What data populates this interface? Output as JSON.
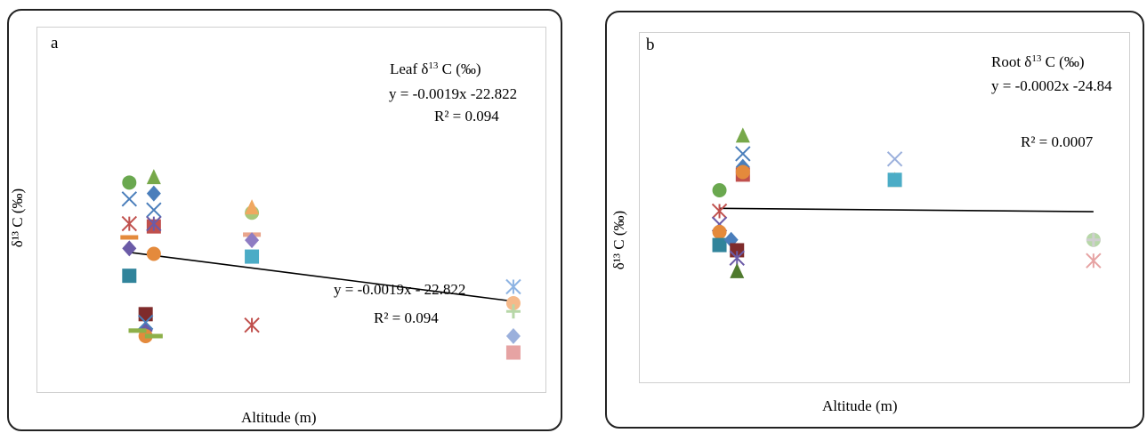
{
  "charts": [
    {
      "panel_label": "a",
      "legend_title_pre": "Leaf  δ",
      "legend_title_sup": "13",
      "legend_title_post": " C (‰)",
      "equation": "y = -0.0019x -22.822",
      "r2": "R² = 0.094",
      "trend_equation": "y = -0.0019x   - 22.822",
      "trend_r2": "R² = 0.094",
      "ylabel": "δ¹³ C (‰)",
      "xlabel": "Altitude (m)"
    },
    {
      "panel_label": "b",
      "legend_title_pre": "Root δ",
      "legend_title_sup": "13",
      "legend_title_post": " C (‰)",
      "equation": "y = -0.0002x -24.84",
      "r2": "R² = 0.0007",
      "ylabel": "δ¹³ C (‰)",
      "xlabel": "Altitude (m)"
    }
  ],
  "chart_data": [
    {
      "type": "scatter",
      "title": "Leaf δ13 C (‰)",
      "xlabel": "Altitude (m)",
      "ylabel": "δ13 C (‰)",
      "ylim": [
        -28,
        -22
      ],
      "x_ticks_shown": false,
      "y_ticks_shown": false,
      "grid": false,
      "trendline": {
        "slope": -0.0019,
        "intercept": -22.821,
        "r2": 0.094
      },
      "points": [
        {
          "x": 1270,
          "y": -24.0,
          "marker": "circle",
          "color": "#6aa84f"
        },
        {
          "x": 1270,
          "y": -24.3,
          "marker": "x",
          "color": "#4a7ebb"
        },
        {
          "x": 1270,
          "y": -24.75,
          "marker": "asterisk",
          "color": "#c0504d"
        },
        {
          "x": 1270,
          "y": -25.0,
          "marker": "dash",
          "color": "#e48a3c"
        },
        {
          "x": 1270,
          "y": -25.2,
          "marker": "diamond",
          "color": "#6b5ba7"
        },
        {
          "x": 1270,
          "y": -25.7,
          "marker": "square",
          "color": "#31849b"
        },
        {
          "x": 1290,
          "y": -26.4,
          "marker": "square",
          "color": "#7f2b2b"
        },
        {
          "x": 1290,
          "y": -26.7,
          "marker": "diamond",
          "color": "#6b5ba7"
        },
        {
          "x": 1290,
          "y": -26.8,
          "marker": "circle",
          "color": "#e48a3c"
        },
        {
          "x": 1290,
          "y": -26.55,
          "marker": "x",
          "color": "#4a7ebb"
        },
        {
          "x": 1280,
          "y": -26.7,
          "marker": "dash",
          "color": "#8db04a"
        },
        {
          "x": 1300,
          "y": -26.8,
          "marker": "dash",
          "color": "#8db04a"
        },
        {
          "x": 1300,
          "y": -23.9,
          "marker": "triangle",
          "color": "#77a84a"
        },
        {
          "x": 1300,
          "y": -24.2,
          "marker": "diamond",
          "color": "#4a7ebb"
        },
        {
          "x": 1300,
          "y": -24.5,
          "marker": "x",
          "color": "#4a7ebb"
        },
        {
          "x": 1300,
          "y": -24.8,
          "marker": "square",
          "color": "#c0504d"
        },
        {
          "x": 1300,
          "y": -24.75,
          "marker": "asterisk",
          "color": "#6b5ba7"
        },
        {
          "x": 1300,
          "y": -25.3,
          "marker": "circle",
          "color": "#e48a3c"
        },
        {
          "x": 1420,
          "y": -24.55,
          "marker": "circle",
          "color": "#a8c77a"
        },
        {
          "x": 1420,
          "y": -24.45,
          "marker": "triangle",
          "color": "#f0a860"
        },
        {
          "x": 1420,
          "y": -24.95,
          "marker": "dash",
          "color": "#e9a58c"
        },
        {
          "x": 1420,
          "y": -25.05,
          "marker": "diamond",
          "color": "#8e7cc3"
        },
        {
          "x": 1420,
          "y": -25.35,
          "marker": "square",
          "color": "#4bacc6"
        },
        {
          "x": 1420,
          "y": -26.6,
          "marker": "asterisk",
          "color": "#c0504d"
        },
        {
          "x": 1740,
          "y": -25.9,
          "marker": "asterisk",
          "color": "#8eb4e3"
        },
        {
          "x": 1740,
          "y": -26.2,
          "marker": "circle",
          "color": "#f5b98a"
        },
        {
          "x": 1740,
          "y": -26.35,
          "marker": "plus",
          "color": "#b7d7a8"
        },
        {
          "x": 1740,
          "y": -26.8,
          "marker": "diamond",
          "color": "#9bb0dc"
        },
        {
          "x": 1740,
          "y": -27.1,
          "marker": "square",
          "color": "#e6a3a3"
        }
      ]
    },
    {
      "type": "scatter",
      "title": "Root δ13 C (‰)",
      "xlabel": "Altitude (m)",
      "ylabel": "δ13 C (‰)",
      "ylim": [
        -28,
        -22
      ],
      "x_ticks_shown": false,
      "y_ticks_shown": false,
      "grid": false,
      "trendline": {
        "slope": -0.0002,
        "intercept": -24.84,
        "r2": 0.0007
      },
      "points": [
        {
          "x": 1270,
          "y": -24.25,
          "marker": "circle",
          "color": "#6aa84f"
        },
        {
          "x": 1270,
          "y": -24.65,
          "marker": "asterisk",
          "color": "#c0504d"
        },
        {
          "x": 1270,
          "y": -24.9,
          "marker": "x",
          "color": "#6b5ba7"
        },
        {
          "x": 1270,
          "y": -25.05,
          "marker": "circle",
          "color": "#e48a3c"
        },
        {
          "x": 1270,
          "y": -25.3,
          "marker": "square",
          "color": "#31849b"
        },
        {
          "x": 1280,
          "y": -25.2,
          "marker": "diamond",
          "color": "#4a7ebb"
        },
        {
          "x": 1285,
          "y": -25.4,
          "marker": "square",
          "color": "#7f2b2b"
        },
        {
          "x": 1285,
          "y": -25.55,
          "marker": "asterisk",
          "color": "#6b5ba7"
        },
        {
          "x": 1285,
          "y": -25.8,
          "marker": "triangle",
          "color": "#4f7a2e"
        },
        {
          "x": 1290,
          "y": -23.2,
          "marker": "triangle",
          "color": "#77a84a"
        },
        {
          "x": 1290,
          "y": -23.55,
          "marker": "x",
          "color": "#4a7ebb"
        },
        {
          "x": 1290,
          "y": -23.8,
          "marker": "diamond",
          "color": "#4a7ebb"
        },
        {
          "x": 1290,
          "y": -23.95,
          "marker": "square",
          "color": "#c0504d"
        },
        {
          "x": 1290,
          "y": -23.9,
          "marker": "circle",
          "color": "#e48a3c"
        },
        {
          "x": 1420,
          "y": -23.65,
          "marker": "x",
          "color": "#9bb0dc"
        },
        {
          "x": 1420,
          "y": -24.05,
          "marker": "triangle",
          "color": "#f0a860"
        },
        {
          "x": 1420,
          "y": -24.05,
          "marker": "square",
          "color": "#4bacc6"
        },
        {
          "x": 1590,
          "y": -25.2,
          "marker": "circle",
          "color": "#b7d7a8"
        },
        {
          "x": 1590,
          "y": -25.2,
          "marker": "plus",
          "color": "#cfcfcf"
        },
        {
          "x": 1590,
          "y": -25.6,
          "marker": "asterisk",
          "color": "#e6a3a3"
        }
      ]
    }
  ]
}
